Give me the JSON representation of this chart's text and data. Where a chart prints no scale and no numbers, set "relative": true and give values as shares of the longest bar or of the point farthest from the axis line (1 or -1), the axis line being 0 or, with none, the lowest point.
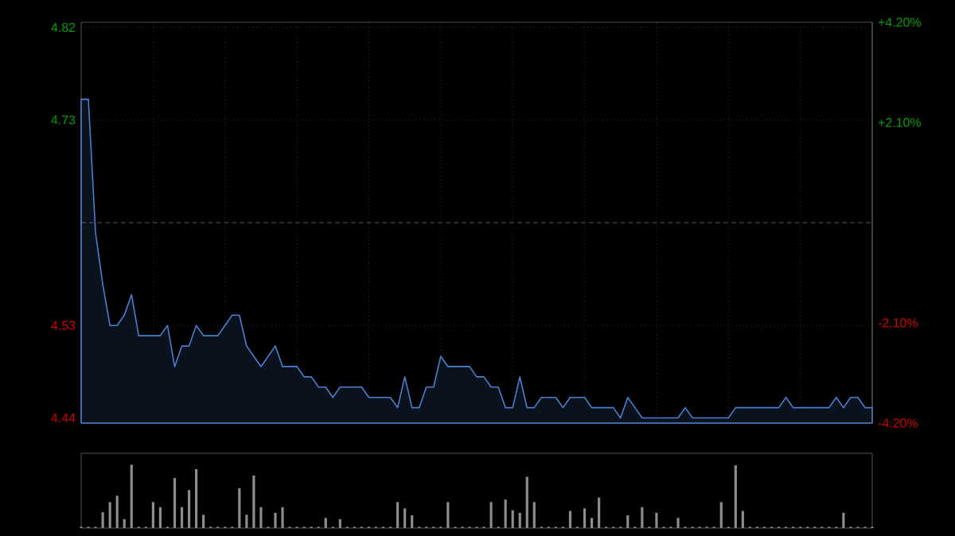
{
  "chart_data": [
    {
      "type": "area",
      "color": "#4a7fd0",
      "tick_labels": "y",
      "grid": true,
      "categories": [
        null,
        null,
        null,
        null,
        null,
        null,
        null,
        null,
        null,
        null,
        null,
        null,
        null,
        null,
        null,
        null,
        null,
        null,
        null,
        null,
        null,
        null,
        null,
        null,
        null,
        null,
        null,
        null,
        null,
        null,
        null,
        null,
        null,
        null,
        null,
        null,
        null,
        null,
        null,
        null,
        null,
        null,
        null,
        null,
        null,
        null,
        null,
        null,
        null,
        null,
        null,
        null,
        null,
        null,
        null,
        null,
        null,
        null,
        null,
        null,
        null,
        null,
        null,
        null,
        null,
        null,
        null,
        null,
        null,
        null,
        null,
        null,
        null,
        null,
        null,
        null,
        null,
        null,
        null,
        null,
        null,
        null,
        null,
        null,
        null,
        null,
        null,
        null,
        null,
        null,
        null,
        null,
        null,
        null,
        null,
        null,
        null,
        null,
        null,
        null,
        null,
        null,
        null,
        null,
        null,
        null,
        null,
        null,
        null,
        null,
        null
      ],
      "values": [
        4.75,
        4.75,
        4.62,
        4.57,
        4.53,
        4.53,
        4.54,
        4.56,
        4.52,
        4.52,
        4.52,
        4.52,
        4.53,
        4.49,
        4.51,
        4.51,
        4.53,
        4.52,
        4.52,
        4.52,
        4.53,
        4.54,
        4.54,
        4.51,
        4.5,
        4.49,
        4.5,
        4.51,
        4.49,
        4.49,
        4.49,
        4.48,
        4.48,
        4.47,
        4.47,
        4.46,
        4.47,
        4.47,
        4.47,
        4.47,
        4.46,
        4.46,
        4.46,
        4.46,
        4.45,
        4.48,
        4.45,
        4.45,
        4.47,
        4.47,
        4.5,
        4.49,
        4.49,
        4.49,
        4.49,
        4.48,
        4.48,
        4.47,
        4.47,
        4.45,
        4.45,
        4.48,
        4.45,
        4.45,
        4.46,
        4.46,
        4.46,
        4.45,
        4.46,
        4.46,
        4.46,
        4.45,
        4.45,
        4.45,
        4.45,
        4.44,
        4.46,
        4.45,
        4.44,
        4.44,
        4.44,
        4.44,
        4.44,
        4.44,
        4.45,
        4.44,
        4.44,
        4.44,
        4.44,
        4.44,
        4.44,
        4.45,
        4.45,
        4.45,
        4.45,
        4.45,
        4.45,
        4.45,
        4.46,
        4.45,
        4.45,
        4.45,
        4.45,
        4.45,
        4.45,
        4.46,
        4.45,
        4.46,
        4.46,
        4.45,
        4.45
      ],
      "ylim": [
        4.435,
        4.825
      ],
      "yticks": [
        4.44,
        4.53,
        4.73,
        4.82
      ],
      "y2lim": [
        -4.2,
        4.2
      ],
      "y2ticks": [
        {
          "value": -4.2,
          "label": "-4.20%"
        },
        {
          "value": -2.1,
          "label": "-2.10%"
        },
        {
          "value": 2.1,
          "label": "+2.10%"
        },
        {
          "value": 4.2,
          "label": "+4.20%"
        }
      ],
      "ref_lines": [
        {
          "axis": "y",
          "value": 4.63,
          "color": "#6e6e6e",
          "line_style": "dashed"
        }
      ]
    },
    {
      "type": "bar",
      "relative": true,
      "color": "#8c8c8c",
      "tick_labels": false,
      "categories": [
        null,
        null,
        null,
        null,
        null,
        null,
        null,
        null,
        null,
        null,
        null,
        null,
        null,
        null,
        null,
        null,
        null,
        null,
        null,
        null,
        null,
        null,
        null,
        null,
        null,
        null,
        null,
        null,
        null,
        null,
        null,
        null,
        null,
        null,
        null,
        null,
        null,
        null,
        null,
        null,
        null,
        null,
        null,
        null,
        null,
        null,
        null,
        null,
        null,
        null,
        null,
        null,
        null,
        null,
        null,
        null,
        null,
        null,
        null,
        null,
        null,
        null,
        null,
        null,
        null,
        null,
        null,
        null,
        null,
        null,
        null,
        null,
        null,
        null,
        null,
        null,
        null,
        null,
        null,
        null,
        null,
        null,
        null,
        null,
        null,
        null,
        null,
        null,
        null,
        null,
        null,
        null,
        null,
        null,
        null,
        null,
        null,
        null,
        null,
        null,
        null,
        null,
        null,
        null,
        null,
        null,
        null,
        null,
        null,
        null,
        null
      ],
      "values": [
        0.02,
        0.02,
        0.02,
        0.25,
        0.41,
        0.51,
        0.14,
        1.0,
        0.02,
        0.02,
        0.41,
        0.33,
        0.02,
        0.79,
        0.33,
        0.6,
        0.93,
        0.21,
        0.02,
        0.02,
        0.02,
        0.02,
        0.63,
        0.21,
        0.83,
        0.33,
        0.02,
        0.24,
        0.33,
        0.02,
        0.02,
        0.02,
        0.02,
        0.02,
        0.16,
        0.02,
        0.14,
        0.02,
        0.02,
        0.02,
        0.02,
        0.02,
        0.02,
        0.02,
        0.41,
        0.31,
        0.2,
        0.02,
        0.02,
        0.02,
        0.02,
        0.41,
        0.02,
        0.02,
        0.02,
        0.02,
        0.02,
        0.41,
        0.02,
        0.45,
        0.28,
        0.24,
        0.81,
        0.41,
        0.02,
        0.02,
        0.02,
        0.02,
        0.27,
        0.02,
        0.31,
        0.16,
        0.48,
        0.02,
        0.02,
        0.02,
        0.2,
        0.02,
        0.33,
        0.02,
        0.24,
        0.02,
        0.02,
        0.16,
        0.02,
        0.02,
        0.02,
        0.02,
        0.02,
        0.41,
        0.02,
        0.99,
        0.27,
        0.02,
        0.02,
        0.02,
        0.02,
        0.02,
        0.02,
        0.02,
        0.02,
        0.02,
        0.02,
        0.02,
        0.02,
        0.02,
        0.24,
        0.02,
        0.02,
        0.02,
        0.02
      ]
    }
  ]
}
